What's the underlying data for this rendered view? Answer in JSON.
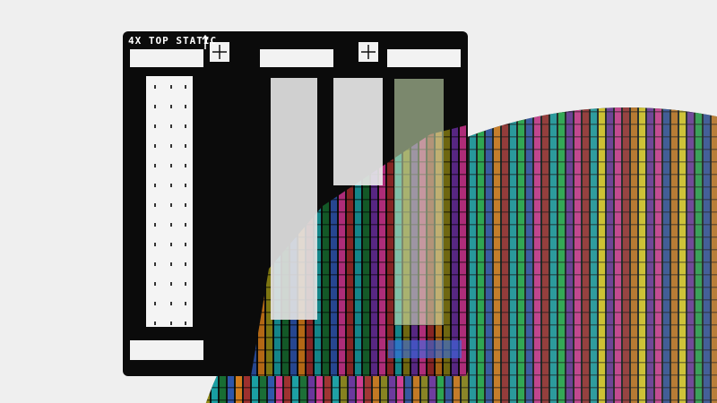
{
  "photo": {
    "subject": "photomask-and-wafer",
    "mask_label": "4X TOP STATIC",
    "colors": {
      "background": "#efefef",
      "mask": "#0b0b0b",
      "wafer_stripes": [
        "#1fb34a",
        "#e2d21a",
        "#f03a3a",
        "#3a6ee8",
        "#8a3ad0",
        "#19c2c8",
        "#f08a1a",
        "#e83aa0"
      ]
    }
  }
}
